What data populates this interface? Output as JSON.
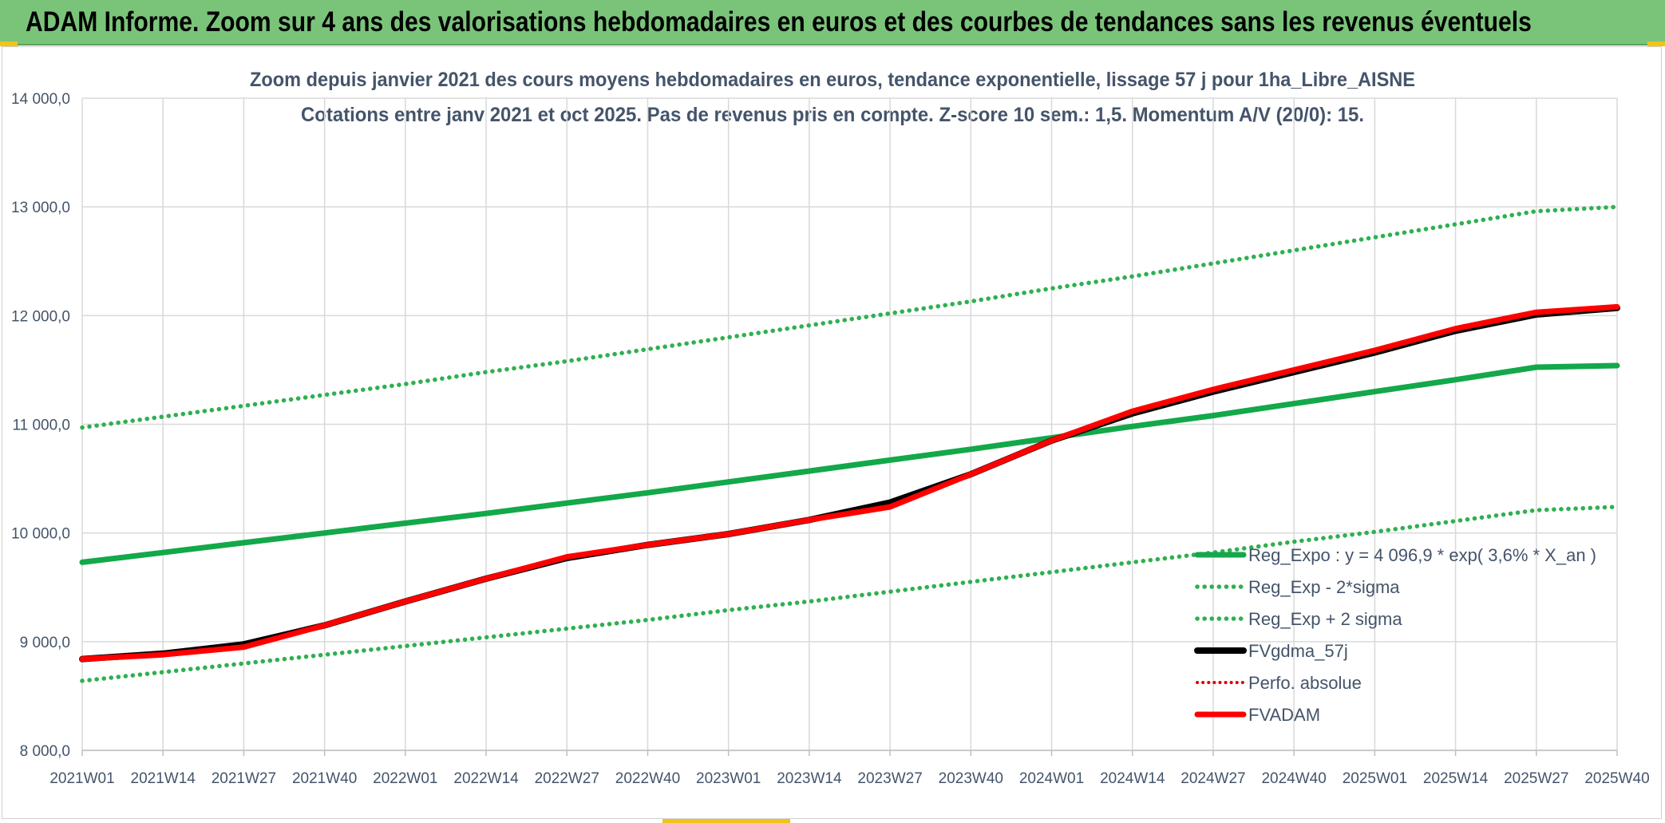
{
  "banner": {
    "title": "ADAM Informe. Zoom sur 4 ans des valorisations hebdomadaires en euros et des courbes de tendances sans les revenus éventuels"
  },
  "colors": {
    "banner_bg": "#7ac47a",
    "trend": "#13a84a",
    "band": "#2fb050",
    "smooth": "#000000",
    "perf": "#e00000",
    "fvadam": "#ff0000",
    "grid": "#d9d9d9",
    "text": "#44546a"
  },
  "chart_data": {
    "type": "line",
    "title_line1": "Zoom depuis janvier 2021 des cours moyens hebdomadaires en euros, tendance exponentielle, lissage 57 j pour 1ha_Libre_AISNE",
    "title_line2": "Cotations entre janv 2021 et oct 2025. Pas de revenus pris en compte. Z-score 10 sem.: 1,5. Momentum A/V (20/0): 15.",
    "x_tick_labels": [
      "2021W01",
      "2021W14",
      "2021W27",
      "2021W40",
      "2022W01",
      "2022W14",
      "2022W27",
      "2022W40",
      "2023W01",
      "2023W14",
      "2023W27",
      "2023W40",
      "2024W01",
      "2024W14",
      "2024W27",
      "2024W40",
      "2025W01",
      "2025W14",
      "2025W27",
      "2025W40"
    ],
    "y_tick_labels": [
      "8 000,0",
      "9 000,0",
      "10 000,0",
      "11 000,0",
      "12 000,0",
      "13 000,0",
      "14 000,0"
    ],
    "ylim": [
      8000,
      14000
    ],
    "grid": true,
    "legend_position": "bottom-right",
    "series": [
      {
        "name": "Reg_Expo : y = 4 096,9 * exp( 3,6% *  X_an )",
        "style": "solid-green",
        "values": [
          9730,
          9820,
          9910,
          10000,
          10090,
          10180,
          10275,
          10370,
          10470,
          10570,
          10670,
          10770,
          10875,
          10980,
          11080,
          11190,
          11300,
          11410,
          11525,
          11540
        ]
      },
      {
        "name": "Reg_Exp - 2*sigma",
        "style": "dotted-green",
        "values": [
          8640,
          8720,
          8800,
          8880,
          8960,
          9040,
          9120,
          9200,
          9290,
          9370,
          9460,
          9550,
          9640,
          9730,
          9820,
          9920,
          10010,
          10110,
          10210,
          10240
        ]
      },
      {
        "name": "Reg_Exp + 2 sigma",
        "style": "dotted-green",
        "values": [
          10970,
          11070,
          11170,
          11270,
          11370,
          11480,
          11580,
          11690,
          11800,
          11910,
          12020,
          12130,
          12250,
          12360,
          12480,
          12600,
          12720,
          12840,
          12960,
          13000
        ]
      },
      {
        "name": "FVgdma_57j",
        "style": "solid-black",
        "values": [
          8840,
          8890,
          8975,
          9150,
          9370,
          9580,
          9770,
          9890,
          9990,
          10120,
          10280,
          10540,
          10850,
          11100,
          11300,
          11480,
          11660,
          11860,
          12010,
          12070
        ]
      },
      {
        "name": "Perfo. absolue",
        "style": "dotted-red",
        "values": [
          8840,
          8880,
          8950,
          9150,
          9370,
          9580,
          9780,
          9890,
          9990,
          10120,
          10240,
          10540,
          10850,
          11120,
          11320,
          11500,
          11680,
          11880,
          12030,
          12080
        ]
      },
      {
        "name": "FVADAM",
        "style": "solid-red",
        "values": [
          8840,
          8880,
          8950,
          9150,
          9370,
          9580,
          9780,
          9890,
          9990,
          10120,
          10240,
          10540,
          10850,
          11120,
          11320,
          11500,
          11680,
          11880,
          12030,
          12080
        ]
      }
    ]
  }
}
